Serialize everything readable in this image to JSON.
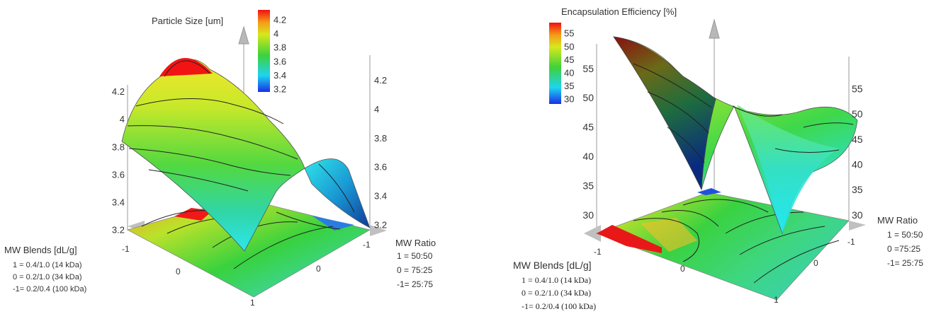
{
  "chart_data": [
    {
      "type": "surface",
      "title": "Particle Size [um]",
      "zlabel": "Particle Size [um]",
      "x_axis": {
        "label": "MW Blends [dL/g]",
        "ticks": [
          "-1",
          "0",
          "1"
        ],
        "legend": [
          "1 = 0.4/1.0  (14 kDa)",
          "0 = 0.2/1.0  (34 kDa)",
          "-1= 0.2/0.4  (100 kDa)"
        ]
      },
      "y_axis": {
        "label": "MW Ratio",
        "ticks": [
          "-1",
          "0"
        ],
        "legend": [
          "1 = 50:50",
          "0 = 75:25",
          "-1= 25:75"
        ]
      },
      "z_ticks": [
        "3.2",
        "3.4",
        "3.6",
        "3.8",
        "4",
        "4.2"
      ],
      "zlim": [
        3.2,
        4.3
      ],
      "colorbar": {
        "ticks": [
          "3.2",
          "3.4",
          "3.6",
          "3.8",
          "4",
          "4.2"
        ],
        "min": 3.2,
        "max": 4.3
      },
      "corner_values": {
        "x-1_y-1": 3.2,
        "x0_y-1": 3.8,
        "x1_y-1": 3.8,
        "x-1_y1": 3.2,
        "x0_y1": 4.25,
        "x1_y1": 3.75
      }
    },
    {
      "type": "surface",
      "title": "Encapsulation Efficiency [%]",
      "zlabel": "Encapsulation Efficiency [%]",
      "x_axis": {
        "label": "MW Blends [dL/g]",
        "ticks": [
          "-1",
          "0",
          "1"
        ],
        "legend": [
          "1 = 0.4/1.0  (14 kDa)",
          "0 = 0.2/1.0  (34 kDa)",
          "-1= 0.2/0.4  (100 kDa)"
        ]
      },
      "y_axis": {
        "label": "MW Ratio",
        "ticks": [
          "-1",
          "0"
        ],
        "legend": [
          "1 = 50:50",
          "0 =75:25",
          "-1= 25:75"
        ]
      },
      "z_ticks": [
        "30",
        "35",
        "40",
        "45",
        "50",
        "55"
      ],
      "zlim": [
        30,
        58
      ],
      "colorbar": {
        "ticks": [
          "30",
          "35",
          "40",
          "45",
          "50",
          "55"
        ],
        "min": 30,
        "max": 58
      },
      "corner_values": {
        "x-1_y1": 57,
        "x-1_y-1": 30,
        "x0_y0": 49,
        "x1_y1": 48,
        "x1_y-1": 30
      }
    }
  ]
}
